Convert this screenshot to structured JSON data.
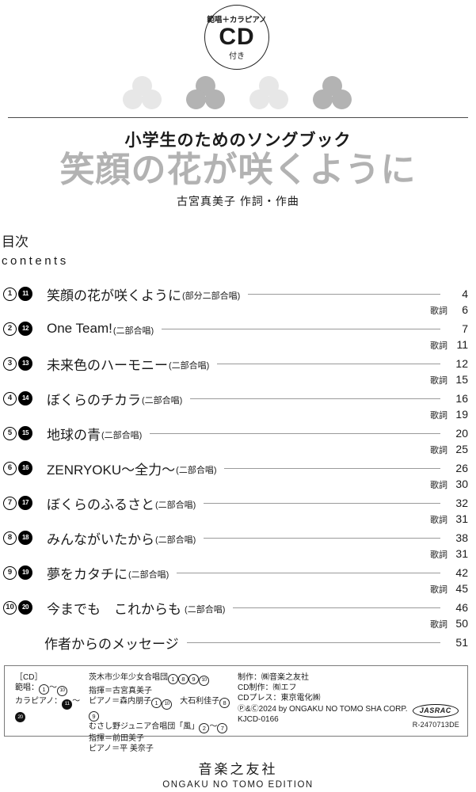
{
  "colors": {
    "title_gray": "#b2b2b2",
    "clover_light": "#e7e7e7",
    "clover_dark": "#b3b3b3"
  },
  "header": {
    "badge_top": "範唱＋カラピアノ",
    "badge_main": "CD",
    "badge_bottom": "付き",
    "series_title": "小学生のためのソングブック",
    "main_title": "笑顔の花が咲くように",
    "author": "古宮真美子 作詞・作曲"
  },
  "toc": {
    "heading_jp": "目次",
    "heading_en": "contents",
    "lyrics_label": "歌詞",
    "tracks": [
      {
        "no": 1,
        "cd_no": 11,
        "title": "笑顔の花が咲くように",
        "subtitle": "(部分二部合唱)",
        "page": "4",
        "lyrics_page": "6"
      },
      {
        "no": 2,
        "cd_no": 12,
        "title": "One Team!",
        "subtitle": "(二部合唱)",
        "page": "7",
        "lyrics_page": "11"
      },
      {
        "no": 3,
        "cd_no": 13,
        "title": "未来色のハーモニー",
        "subtitle": "(二部合唱)",
        "page": "12",
        "lyrics_page": "15"
      },
      {
        "no": 4,
        "cd_no": 14,
        "title": "ぼくらのチカラ",
        "subtitle": "(二部合唱)",
        "page": "16",
        "lyrics_page": "19"
      },
      {
        "no": 5,
        "cd_no": 15,
        "title": "地球の青",
        "subtitle": "(二部合唱)",
        "page": "20",
        "lyrics_page": "25"
      },
      {
        "no": 6,
        "cd_no": 16,
        "title": "ZENRYOKU～全力～",
        "subtitle": "(二部合唱)",
        "page": "26",
        "lyrics_page": "30"
      },
      {
        "no": 7,
        "cd_no": 17,
        "title": "ぼくらのふるさと",
        "subtitle": "(二部合唱)",
        "page": "32",
        "lyrics_page": "31"
      },
      {
        "no": 8,
        "cd_no": 18,
        "title": "みんながいたから",
        "subtitle": "(二部合唱)",
        "page": "38",
        "lyrics_page": "31"
      },
      {
        "no": 9,
        "cd_no": 19,
        "title": "夢をカタチに",
        "subtitle": "(二部合唱)",
        "page": "42",
        "lyrics_page": "45"
      },
      {
        "no": 10,
        "cd_no": 20,
        "title": "今までも　これからも",
        "subtitle": " (二部合唱)",
        "page": "46",
        "lyrics_page": "50"
      }
    ],
    "extra": {
      "title": "作者からのメッセージ",
      "page": "51"
    }
  },
  "credits": {
    "col1": [
      "［CD］",
      "範唱：①～⑩",
      "カラピアノ：⓫～⓴"
    ],
    "col2": [
      "茨木市少年少女合唱団①⑧⑨⑩",
      "指揮＝古宮真美子",
      "ピアノ＝森内朋子①⑩　大石利佳子⑧⑨",
      "むさし野ジュニア合唱団「風」②～⑦",
      "指揮＝前田美子",
      "ピアノ＝平 美奈子"
    ],
    "col3": [
      "制作：㈱音楽之友社",
      "CD制作：㈲エフ",
      "CDプレス：東京電化㈱",
      "Ⓟ&Ⓒ2024 by ONGAKU NO TOMO SHA CORP.",
      "KJCD-0166"
    ],
    "jasrac_label": "JASRAC",
    "jasrac_number": "R-2470713DE"
  },
  "footer": {
    "publisher_jp": "音楽之友社",
    "publisher_en": "ONGAKU NO TOMO EDITION"
  }
}
